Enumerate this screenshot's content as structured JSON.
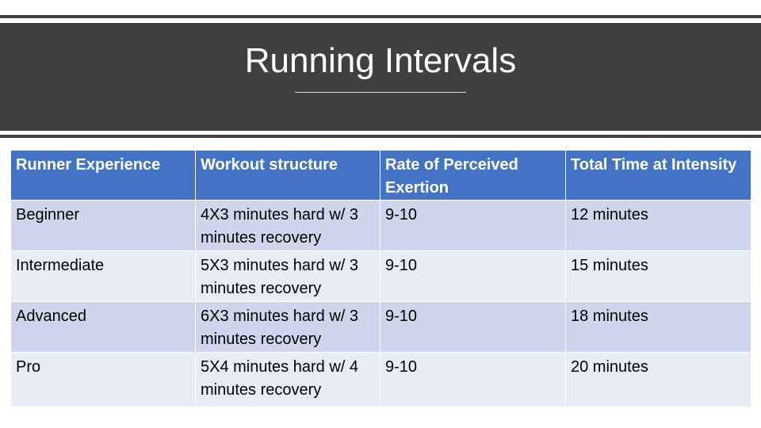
{
  "slide": {
    "title": "Running Intervals"
  },
  "table": {
    "headers": [
      "Runner Experience",
      "Workout structure",
      "Rate of Perceived Exertion",
      "Total Time at Intensity"
    ],
    "rows": [
      [
        "Beginner",
        "4X3 minutes hard w/ 3 minutes recovery",
        "9-10",
        "12 minutes"
      ],
      [
        "Intermediate",
        "5X3 minutes hard w/ 3 minutes recovery",
        "9-10",
        "15 minutes"
      ],
      [
        "Advanced",
        "6X3 minutes hard w/ 3 minutes recovery",
        "9-10",
        "18 minutes"
      ],
      [
        "Pro",
        "5X4 minutes hard w/ 4 minutes recovery",
        "9-10",
        "20 minutes"
      ]
    ]
  },
  "colors": {
    "title_band": "#404040",
    "header_fill": "#4472c4",
    "row_dark": "#cfd5ea",
    "row_light": "#e9ebf5"
  }
}
